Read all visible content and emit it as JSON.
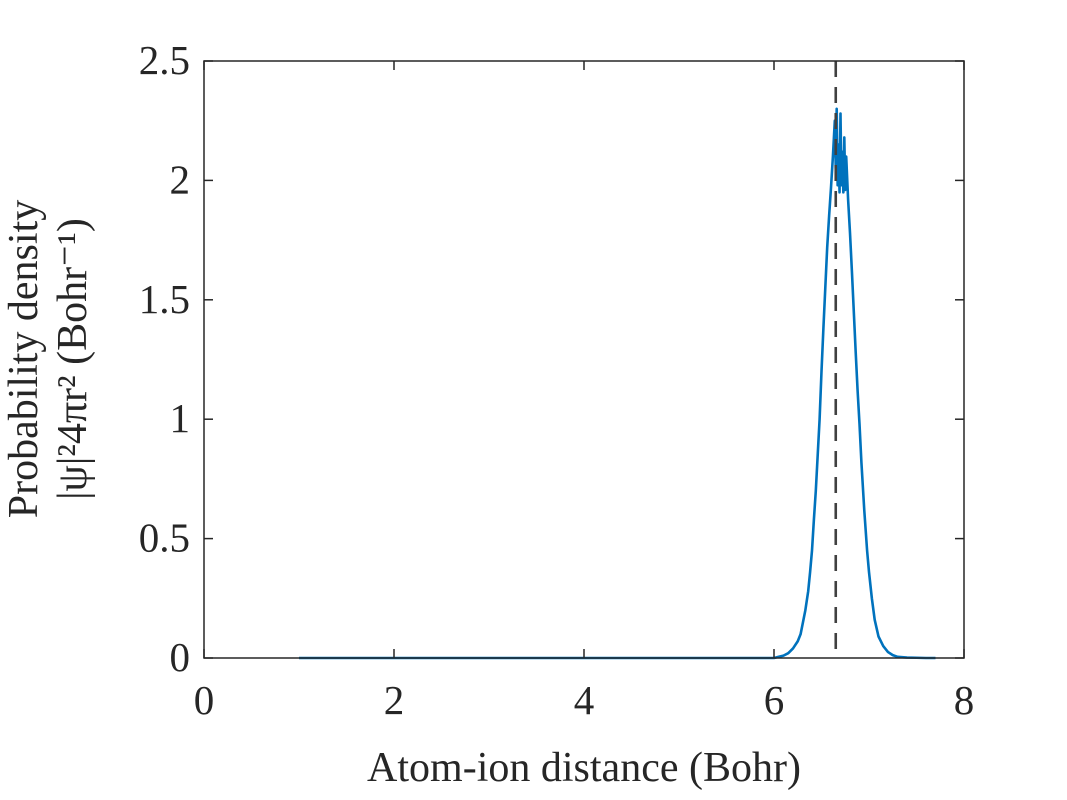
{
  "chart_data": {
    "type": "line",
    "title": "",
    "xlabel": "Atom-ion distance (Bohr)",
    "ylabel_line1": "Probability density",
    "ylabel_line2": "|ψ|²4πr² (Bohr⁻¹)",
    "xlim": [
      0,
      8
    ],
    "ylim": [
      0,
      2.5
    ],
    "xticks": [
      0,
      2,
      4,
      6,
      8
    ],
    "xtick_labels": [
      "0",
      "2",
      "4",
      "6",
      "8"
    ],
    "yticks": [
      0,
      0.5,
      1,
      1.5,
      2,
      2.5
    ],
    "ytick_labels": [
      "0",
      "0.5",
      "1",
      "1.5",
      "2",
      "2.5"
    ],
    "grid": false,
    "legend": "none",
    "series": [
      {
        "color": "#0072BD",
        "x": [
          1.0,
          2.0,
          3.0,
          4.0,
          5.0,
          6.0,
          6.05,
          6.1,
          6.15,
          6.2,
          6.25,
          6.28,
          6.3,
          6.33,
          6.36,
          6.38,
          6.4,
          6.42,
          6.44,
          6.46,
          6.48,
          6.5,
          6.52,
          6.54,
          6.56,
          6.58,
          6.6,
          6.62,
          6.64,
          6.65,
          6.66,
          6.67,
          6.68,
          6.69,
          6.7,
          6.71,
          6.72,
          6.73,
          6.74,
          6.75,
          6.76,
          6.78,
          6.8,
          6.82,
          6.84,
          6.86,
          6.88,
          6.9,
          6.92,
          6.95,
          6.98,
          7.0,
          7.03,
          7.06,
          7.1,
          7.15,
          7.2,
          7.25,
          7.3,
          7.4,
          7.5,
          7.6,
          7.7
        ],
        "y": [
          0,
          0,
          0,
          0,
          0,
          0,
          0.005,
          0.01,
          0.02,
          0.04,
          0.07,
          0.1,
          0.14,
          0.2,
          0.28,
          0.36,
          0.45,
          0.58,
          0.7,
          0.85,
          1.0,
          1.2,
          1.38,
          1.55,
          1.72,
          1.85,
          1.97,
          2.1,
          2.25,
          2.05,
          2.3,
          1.98,
          2.15,
          1.95,
          2.28,
          1.98,
          2.12,
          1.95,
          2.18,
          1.96,
          2.1,
          1.92,
          1.78,
          1.62,
          1.45,
          1.28,
          1.12,
          0.98,
          0.82,
          0.62,
          0.45,
          0.36,
          0.25,
          0.16,
          0.09,
          0.05,
          0.025,
          0.012,
          0.005,
          0.002,
          0.001,
          0,
          0
        ]
      }
    ],
    "reference_lines": [
      {
        "orientation": "vertical",
        "x": 6.65,
        "style": "dashed",
        "color": "#404040"
      }
    ]
  }
}
